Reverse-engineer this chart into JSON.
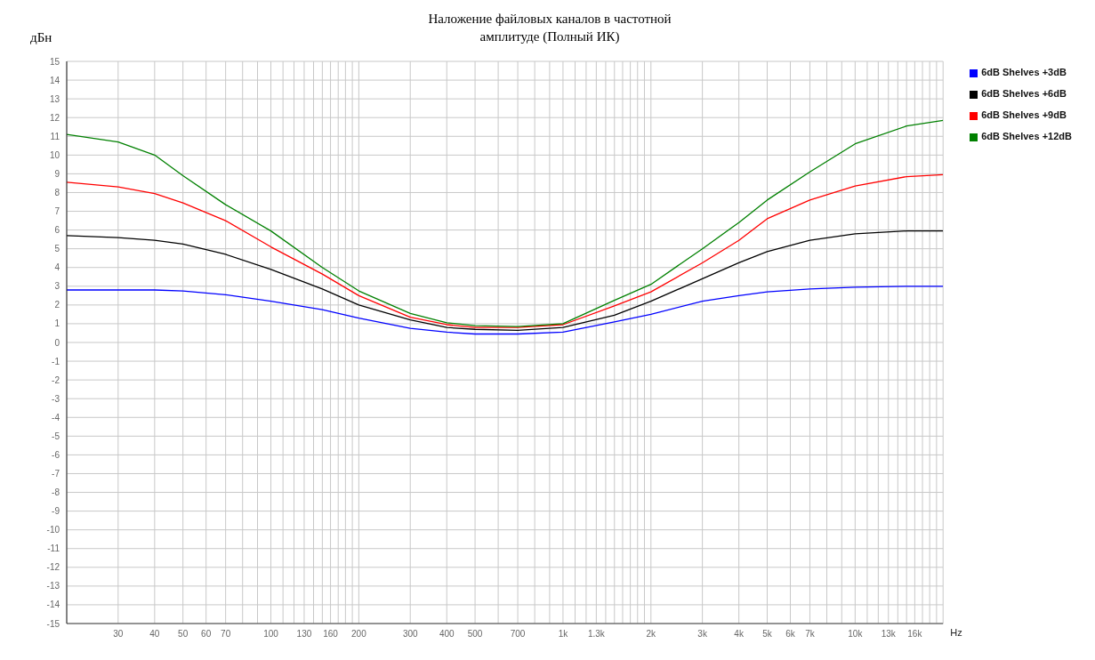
{
  "chart_data": {
    "type": "line",
    "title": "Наложение файловых каналов в частотной амплитуде (Полный ИК)",
    "xlabel": "Hz",
    "ylabel": "дБн",
    "log": "x",
    "grid": true,
    "legend": "top right",
    "x": [
      20,
      30,
      40,
      50,
      70,
      100,
      150,
      200,
      300,
      400,
      500,
      700,
      1000,
      1500,
      2000,
      3000,
      4000,
      5000,
      7000,
      10000,
      15000,
      20000
    ],
    "series": [
      {
        "name": "6dB Shelves +3dB",
        "color": "#0000ff",
        "values": [
          2.8,
          2.8,
          2.8,
          2.75,
          2.55,
          2.2,
          1.75,
          1.3,
          0.75,
          0.55,
          0.45,
          0.45,
          0.55,
          1.1,
          1.5,
          2.2,
          2.5,
          2.7,
          2.85,
          2.95,
          3.0,
          3.0
        ]
      },
      {
        "name": "6dB Shelves +6dB",
        "color": "#000000",
        "values": [
          5.7,
          5.6,
          5.45,
          5.25,
          4.7,
          3.9,
          2.85,
          2.0,
          1.2,
          0.8,
          0.7,
          0.65,
          0.8,
          1.45,
          2.2,
          3.4,
          4.25,
          4.85,
          5.45,
          5.8,
          5.95,
          5.95
        ]
      },
      {
        "name": "6dB Shelves +9dB",
        "color": "#ff0000",
        "values": [
          8.55,
          8.3,
          7.95,
          7.45,
          6.5,
          5.1,
          3.65,
          2.5,
          1.35,
          0.95,
          0.8,
          0.8,
          0.95,
          1.95,
          2.7,
          4.25,
          5.45,
          6.6,
          7.6,
          8.35,
          8.85,
          8.95
        ]
      },
      {
        "name": "6dB Shelves +12dB",
        "color": "#008000",
        "values": [
          11.1,
          10.7,
          10.0,
          8.9,
          7.35,
          5.95,
          4.0,
          2.75,
          1.55,
          1.05,
          0.9,
          0.85,
          1.0,
          2.25,
          3.1,
          5.0,
          6.4,
          7.6,
          9.1,
          10.6,
          11.55,
          11.85
        ]
      }
    ],
    "xlim": [
      20,
      20000
    ],
    "xticks": [
      30,
      40,
      50,
      60,
      70,
      {
        "value": 80,
        "label": null
      },
      {
        "value": 90,
        "label": null
      },
      100,
      {
        "value": 110,
        "label": null
      },
      {
        "value": 120,
        "label": null
      },
      130,
      {
        "value": 140,
        "label": null
      },
      {
        "value": 150,
        "label": null
      },
      160,
      {
        "value": 170,
        "label": null
      },
      {
        "value": 180,
        "label": null
      },
      {
        "value": 190,
        "label": null
      },
      200,
      300,
      400,
      500,
      {
        "value": 600,
        "label": null
      },
      700,
      {
        "value": 800,
        "label": null
      },
      {
        "value": 900,
        "label": null
      },
      {
        "value": 1000,
        "label": "1k"
      },
      {
        "value": 1100,
        "label": null
      },
      {
        "value": 1200,
        "label": null
      },
      {
        "value": 1300,
        "label": "1.3k"
      },
      {
        "value": 1400,
        "label": null
      },
      {
        "value": 1500,
        "label": null
      },
      {
        "value": 1600,
        "label": null
      },
      {
        "value": 1700,
        "label": null
      },
      {
        "value": 1800,
        "label": null
      },
      {
        "value": 1900,
        "label": null
      },
      {
        "value": 2000,
        "label": "2k"
      },
      {
        "value": 3000,
        "label": "3k"
      },
      {
        "value": 4000,
        "label": "4k"
      },
      {
        "value": 5000,
        "label": "5k"
      },
      {
        "value": 6000,
        "label": "6k"
      },
      {
        "value": 7000,
        "label": "7k"
      },
      {
        "value": 8000,
        "label": null
      },
      {
        "value": 9000,
        "label": null
      },
      {
        "value": 10000,
        "label": "10k"
      },
      {
        "value": 11000,
        "label": null
      },
      {
        "value": 12000,
        "label": null
      },
      {
        "value": 13000,
        "label": "13k"
      },
      {
        "value": 14000,
        "label": null
      },
      {
        "value": 15000,
        "label": null
      },
      {
        "value": 16000,
        "label": "16k"
      },
      {
        "value": 17000,
        "label": null
      },
      {
        "value": 18000,
        "label": null
      },
      {
        "value": 19000,
        "label": null
      }
    ],
    "ylim": [
      -15,
      15
    ],
    "yticks": [
      -15,
      -14,
      -13,
      -12,
      -11,
      -10,
      -9,
      -8,
      -7,
      -6,
      -5,
      -4,
      -3,
      -2,
      -1,
      0,
      1,
      2,
      3,
      4,
      5,
      6,
      7,
      8,
      9,
      10,
      11,
      12,
      13,
      14,
      15
    ]
  }
}
